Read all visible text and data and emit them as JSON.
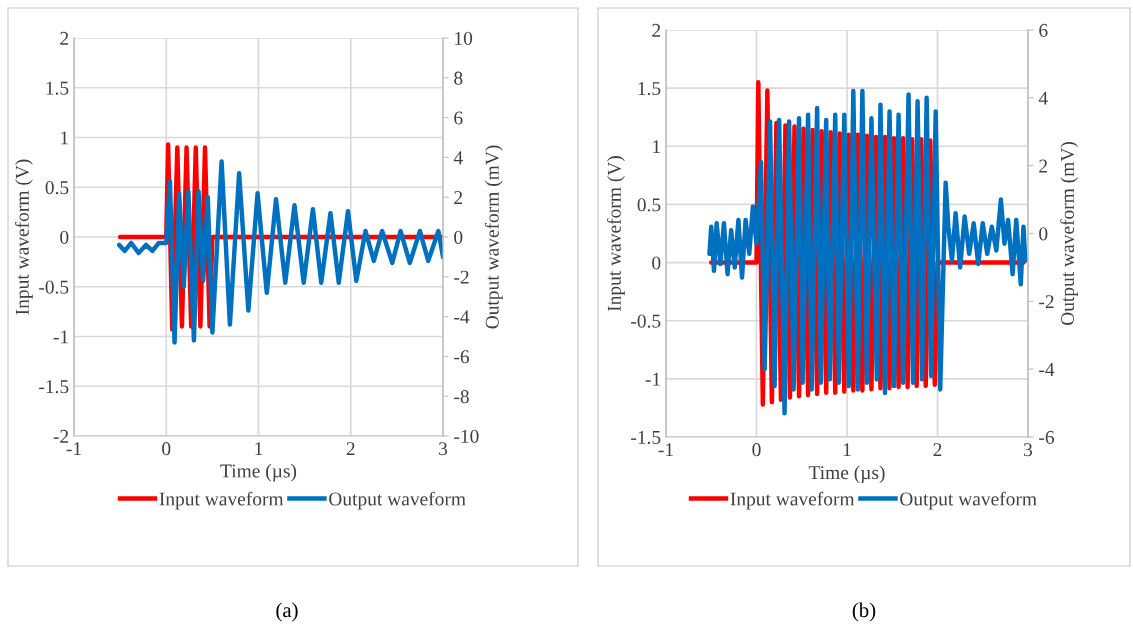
{
  "chart_data": [
    {
      "type": "line",
      "xlabel": "Time (µs)",
      "ylabel": "Input waveform (V)",
      "y2label": "Output waveform (mV)",
      "xlim": [
        -1,
        3
      ],
      "xticks": [
        -1,
        0,
        1,
        2,
        3
      ],
      "ylim": [
        -2,
        2
      ],
      "yticks": [
        -2,
        -1.5,
        -1,
        -0.5,
        0,
        0.5,
        1,
        1.5,
        2
      ],
      "y2lim": [
        -10,
        10
      ],
      "y2ticks": [
        -10,
        -8,
        -6,
        -4,
        -2,
        0,
        2,
        4,
        6,
        8,
        10
      ],
      "grid": true,
      "legend": "bottom",
      "marker": "none",
      "line_style": "solid",
      "annotations": [
        "(a)"
      ],
      "series": [
        {
          "name": "Input waveform",
          "color": "#ff0000",
          "x": [
            -0.5,
            0,
            0.02,
            0.065,
            0.12,
            0.17,
            0.22,
            0.27,
            0.32,
            0.37,
            0.42,
            0.47,
            0.5,
            3
          ],
          "values": [
            0,
            0,
            0.93,
            -0.93,
            0.9,
            -0.9,
            0.9,
            -0.9,
            0.9,
            -0.9,
            0.9,
            -0.9,
            0,
            0
          ]
        },
        {
          "name": "Output waveform",
          "color": "#0070c0",
          "axis": "y2",
          "x": [
            -0.51,
            -0.45,
            -0.38,
            -0.3,
            -0.22,
            -0.15,
            -0.08,
            0,
            0.04,
            0.09,
            0.14,
            0.19,
            0.24,
            0.3,
            0.35,
            0.4,
            0.45,
            0.5,
            0.6,
            0.69,
            0.79,
            0.89,
            0.99,
            1.09,
            1.19,
            1.29,
            1.39,
            1.49,
            1.59,
            1.68,
            1.78,
            1.87,
            1.97,
            2.06,
            2.16,
            2.25,
            2.34,
            2.45,
            2.54,
            2.64,
            2.75,
            2.84,
            2.95,
            3.0
          ],
          "values": [
            -0.4,
            -0.7,
            -0.3,
            -0.8,
            -0.4,
            -0.7,
            -0.3,
            -0.3,
            2.8,
            -5.3,
            2.2,
            -2.5,
            2.3,
            -5.2,
            2.3,
            -2.2,
            2.0,
            -4.8,
            3.8,
            -4.4,
            3.2,
            -3.7,
            2.2,
            -2.8,
            1.9,
            -2.3,
            1.6,
            -2.3,
            1.4,
            -2.3,
            1.2,
            -2.3,
            1.3,
            -2.2,
            0.3,
            -1.2,
            0.3,
            -1.3,
            0.3,
            -1.3,
            0.3,
            -1.2,
            0.3,
            -1.0
          ]
        }
      ]
    },
    {
      "type": "line",
      "xlabel": "Time (µs)",
      "ylabel": "Input waveform (V)",
      "y2label": "Output waveform (mV)",
      "xlim": [
        -1,
        3
      ],
      "xticks": [
        -1,
        0,
        1,
        2,
        3
      ],
      "ylim": [
        -1.5,
        2
      ],
      "yticks": [
        -1.5,
        -1,
        -0.5,
        0,
        0.5,
        1,
        1.5,
        2
      ],
      "y2lim": [
        -6,
        6
      ],
      "y2ticks": [
        -6,
        -4,
        -2,
        0,
        2,
        4,
        6
      ],
      "grid": true,
      "legend": "bottom",
      "marker": "none",
      "line_style": "solid",
      "annotations": [
        "(b)"
      ],
      "series": [
        {
          "name": "Input waveform",
          "color": "#ff0000",
          "x": [
            -0.5,
            0,
            0.02,
            0.07,
            0.12,
            0.17,
            0.22,
            0.27,
            0.32,
            0.37,
            0.42,
            0.47,
            0.52,
            0.57,
            0.62,
            0.67,
            0.72,
            0.77,
            0.82,
            0.87,
            0.92,
            0.97,
            1.02,
            1.07,
            1.12,
            1.17,
            1.22,
            1.27,
            1.32,
            1.37,
            1.42,
            1.47,
            1.52,
            1.57,
            1.62,
            1.67,
            1.72,
            1.77,
            1.82,
            1.87,
            1.92,
            1.97,
            2.0,
            2.95
          ],
          "values": [
            0,
            0,
            1.55,
            -1.22,
            1.48,
            -1.2,
            1.2,
            -1.18,
            1.18,
            -1.16,
            1.17,
            -1.15,
            1.15,
            -1.14,
            1.14,
            -1.13,
            1.13,
            -1.12,
            1.12,
            -1.12,
            1.11,
            -1.11,
            1.1,
            -1.1,
            1.1,
            -1.1,
            1.09,
            -1.09,
            1.08,
            -1.08,
            1.08,
            -1.08,
            1.07,
            -1.07,
            1.07,
            -1.07,
            1.06,
            -1.06,
            1.06,
            -1.06,
            1.05,
            -1.05,
            0,
            0
          ]
        },
        {
          "name": "Output waveform",
          "color": "#0070c0",
          "axis": "y2",
          "x": [
            -0.52,
            -0.5,
            -0.47,
            -0.44,
            -0.4,
            -0.36,
            -0.32,
            -0.28,
            -0.24,
            -0.2,
            -0.16,
            -0.12,
            -0.08,
            -0.04,
            0.0,
            0.05,
            0.09,
            0.15,
            0.2,
            0.25,
            0.31,
            0.36,
            0.41,
            0.47,
            0.51,
            0.57,
            0.61,
            0.67,
            0.71,
            0.77,
            0.81,
            0.87,
            0.91,
            0.97,
            1.02,
            1.07,
            1.12,
            1.17,
            1.22,
            1.27,
            1.33,
            1.37,
            1.42,
            1.47,
            1.52,
            1.57,
            1.62,
            1.68,
            1.73,
            1.78,
            1.83,
            1.88,
            1.93,
            1.98,
            2.03,
            2.09,
            2.12,
            2.16,
            2.2,
            2.25,
            2.3,
            2.35,
            2.4,
            2.45,
            2.5,
            2.55,
            2.6,
            2.65,
            2.7,
            2.74,
            2.78,
            2.83,
            2.87,
            2.92,
            2.95,
            2.97
          ],
          "values": [
            -0.6,
            0.2,
            -1.1,
            0.3,
            -0.9,
            0.3,
            -1.2,
            0.1,
            -1.0,
            0.4,
            -1.3,
            0.4,
            -0.6,
            0.8,
            -0.3,
            2.1,
            -4.0,
            3.3,
            -4.5,
            3.35,
            -5.3,
            3.3,
            -4.6,
            3.4,
            -4.4,
            3.5,
            -4.6,
            3.7,
            -4.4,
            3.35,
            -4.3,
            3.5,
            -4.4,
            3.5,
            -4.5,
            4.2,
            -4.6,
            4.2,
            -4.4,
            3.4,
            -4.3,
            3.8,
            -4.7,
            3.6,
            -4.5,
            3.5,
            -4.4,
            4.1,
            -4.4,
            3.9,
            -4.3,
            4.0,
            -4.2,
            3.6,
            -4.6,
            1.5,
            0.2,
            -0.8,
            0.6,
            -1.0,
            0.5,
            -0.6,
            0.3,
            -0.9,
            0.3,
            -0.6,
            0.2,
            -0.5,
            1.0,
            -0.3,
            0.4,
            -1.2,
            0.4,
            -1.5,
            0.2,
            -0.8
          ]
        }
      ]
    }
  ]
}
